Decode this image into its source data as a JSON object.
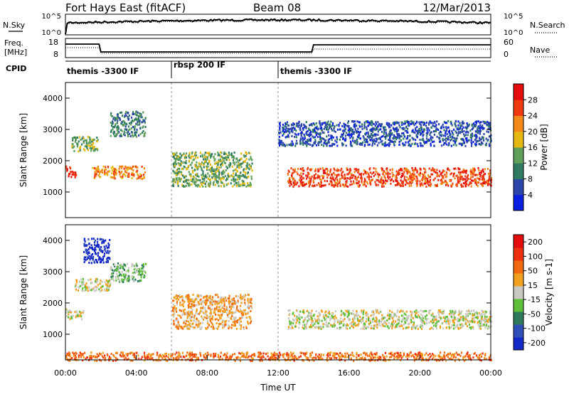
{
  "header": {
    "station": "Fort Hays East (fitACF)",
    "beam": "Beam 08",
    "date": "12/Mar/2013"
  },
  "strips": {
    "nsky_label": "N.Sky",
    "nsky_ticks": [
      "10^5",
      "10^0"
    ],
    "nsearch_label": "N.Search",
    "nsearch_ticks": [
      "10^5",
      "10^0"
    ],
    "freq_label_1": "Freq.",
    "freq_label_2": "[MHz]",
    "freq_ticks": [
      "18",
      "8"
    ],
    "nave_label": "Nave",
    "nave_ticks": [
      "60",
      "0"
    ],
    "cpid_label": "CPID",
    "cpid_segments": [
      {
        "label": "themis -3300 IF",
        "start_hour": 0,
        "end_hour": 6
      },
      {
        "label": "rbsp 200 IF",
        "start_hour": 6,
        "end_hour": 12
      },
      {
        "label": "themis -3300 IF",
        "start_hour": 12,
        "end_hour": 24
      }
    ]
  },
  "chart_data": [
    {
      "type": "heatmap",
      "name": "power",
      "ylabel": "Slant Range [km]",
      "yticks": [
        "1000",
        "2000",
        "3000",
        "4000"
      ],
      "ylim": [
        180,
        4500
      ],
      "xlim": [
        0,
        24
      ],
      "colorbar_label": "Power [dB]",
      "colorbar_ticks": [
        "4",
        "8",
        "12",
        "16",
        "20",
        "24",
        "28"
      ],
      "colorbar_colors": [
        "#0b1fe0",
        "#2b45a8",
        "#2f7a60",
        "#5f9f5a",
        "#e6b812",
        "#f28a1a",
        "#f03a12",
        "#e40d0d"
      ],
      "features": [
        {
          "start_hour": 0.0,
          "end_hour": 0.6,
          "range_low": 1500,
          "range_high": 1850,
          "level": 6
        },
        {
          "start_hour": 0.3,
          "end_hour": 1.8,
          "range_low": 2300,
          "range_high": 2800,
          "level": 3
        },
        {
          "start_hour": 1.5,
          "end_hour": 4.5,
          "range_low": 1450,
          "range_high": 1850,
          "level": 5
        },
        {
          "start_hour": 2.5,
          "end_hour": 4.5,
          "range_low": 2800,
          "range_high": 3600,
          "level": 2
        },
        {
          "start_hour": 6.0,
          "end_hour": 10.5,
          "range_low": 1200,
          "range_high": 2300,
          "level": 3
        },
        {
          "start_hour": 12.5,
          "end_hour": 24.0,
          "range_low": 1200,
          "range_high": 1800,
          "level": 6
        },
        {
          "start_hour": 12.0,
          "end_hour": 24.0,
          "range_low": 2500,
          "range_high": 3300,
          "level": 1
        }
      ]
    },
    {
      "type": "heatmap",
      "name": "velocity",
      "ylabel": "Slant Range [km]",
      "yticks": [
        "1000",
        "2000",
        "3000",
        "4000"
      ],
      "ylim": [
        180,
        4500
      ],
      "xlim": [
        0,
        24
      ],
      "xlabel": "Time UT",
      "xticks": [
        "00:00",
        "04:00",
        "08:00",
        "12:00",
        "16:00",
        "20:00",
        "00:00"
      ],
      "colorbar_label": "Velocity [m s-1]",
      "colorbar_ticks": [
        "200",
        "100",
        "50",
        "15",
        "-15",
        "-50",
        "-100",
        "-200"
      ],
      "colorbar_colors": [
        "#1428c8",
        "#2f4fb6",
        "#2f7a5a",
        "#5fbf3a",
        "#c9c9c2",
        "#f2a020",
        "#f26a10",
        "#ee3010",
        "#e40d0d"
      ],
      "features": [
        {
          "start_hour": 0.0,
          "end_hour": 1.0,
          "range_low": 1500,
          "range_high": 1850,
          "level": 4
        },
        {
          "start_hour": 0.5,
          "end_hour": 2.5,
          "range_low": 2400,
          "range_high": 2800,
          "level": 4
        },
        {
          "start_hour": 1.0,
          "end_hour": 2.5,
          "range_low": 3300,
          "range_high": 4100,
          "level": 0
        },
        {
          "start_hour": 2.5,
          "end_hour": 4.5,
          "range_low": 2700,
          "range_high": 3300,
          "level": 3
        },
        {
          "start_hour": 6.0,
          "end_hour": 10.5,
          "range_low": 1200,
          "range_high": 2300,
          "level": 5
        },
        {
          "start_hour": 12.5,
          "end_hour": 24.0,
          "range_low": 1200,
          "range_high": 1800,
          "level": 4
        },
        {
          "start_hour": 0.0,
          "end_hour": 24.0,
          "range_low": 180,
          "range_high": 450,
          "level": 6
        }
      ]
    }
  ]
}
